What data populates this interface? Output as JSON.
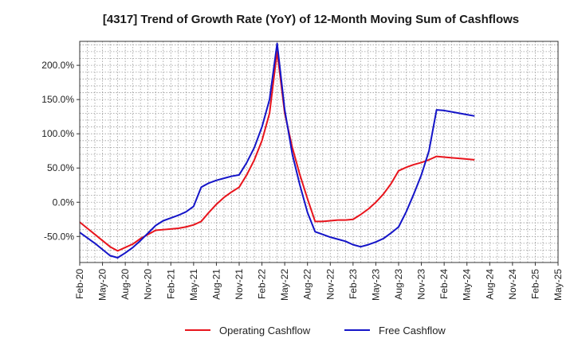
{
  "chart_data": {
    "type": "line",
    "title": "[4317]  Trend of Growth Rate (YoY) of 12-Month Moving Sum of Cashflows",
    "xlabel": "",
    "ylabel": "",
    "ylim": [
      -88,
      235
    ],
    "y_ticks": [
      -50,
      0,
      50,
      100,
      150,
      200
    ],
    "y_tick_labels": [
      "-50.0%",
      "0.0%",
      "50.0%",
      "100.0%",
      "150.0%",
      "200.0%"
    ],
    "x_tick_labels": [
      "Feb-20",
      "May-20",
      "Aug-20",
      "Nov-20",
      "Feb-21",
      "May-21",
      "Aug-21",
      "Nov-21",
      "Feb-22",
      "May-22",
      "Aug-22",
      "Nov-22",
      "Feb-23",
      "May-23",
      "Aug-23",
      "Nov-23",
      "Feb-24",
      "May-24",
      "Aug-24",
      "Nov-24",
      "Feb-25",
      "May-25"
    ],
    "grid": true,
    "legend_position": "bottom-center",
    "series": [
      {
        "name": "Operating Cashflow",
        "color": "#e8141c",
        "values": [
          -29,
          -38,
          -47,
          -56,
          -65,
          -71,
          -66,
          -61,
          -53,
          -47,
          -41,
          -40,
          -39,
          -38,
          -36,
          -33,
          -28,
          -15,
          -3,
          7,
          15,
          22,
          40,
          62,
          90,
          130,
          220,
          130,
          80,
          40,
          5,
          -28,
          -28,
          -27,
          -26,
          -26,
          -25,
          -18,
          -10,
          0,
          12,
          27,
          46,
          51,
          55,
          58,
          62,
          67,
          66,
          65,
          64,
          63,
          62
        ]
      },
      {
        "name": "Free Cashflow",
        "color": "#1414c8",
        "values": [
          -44,
          -52,
          -60,
          -69,
          -78,
          -81,
          -74,
          -66,
          -56,
          -45,
          -34,
          -27,
          -23,
          -19,
          -14,
          -6,
          22,
          28,
          32,
          35,
          38,
          40,
          58,
          80,
          110,
          150,
          232,
          135,
          70,
          25,
          -15,
          -43,
          -47,
          -51,
          -54,
          -57,
          -62,
          -65,
          -62,
          -58,
          -53,
          -45,
          -36,
          -14,
          12,
          40,
          75,
          135,
          134,
          132,
          130,
          128,
          126
        ]
      }
    ]
  }
}
